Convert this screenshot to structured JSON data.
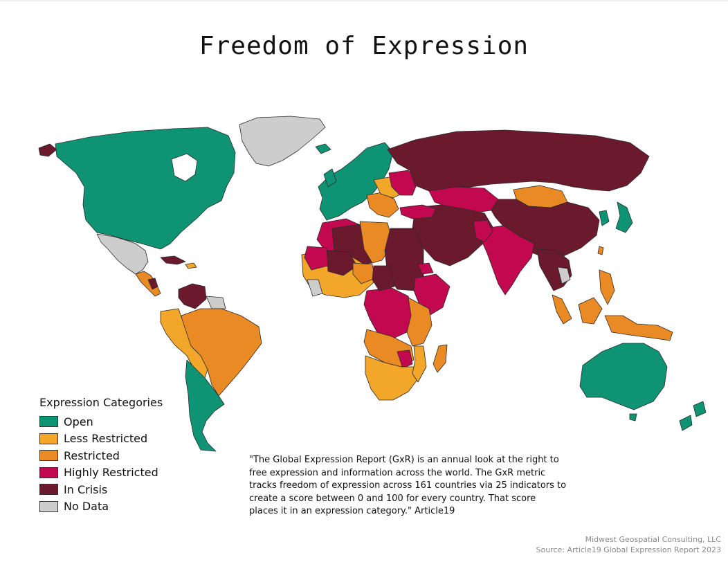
{
  "title": "Freedom of Expression",
  "legend": {
    "title": "Expression Categories",
    "items": [
      {
        "label": "Open",
        "color": "#0e9374"
      },
      {
        "label": "Less Restricted",
        "color": "#f3a72a"
      },
      {
        "label": "Restricted",
        "color": "#e98a25"
      },
      {
        "label": "Highly Restricted",
        "color": "#c2084f"
      },
      {
        "label": "In Crisis",
        "color": "#6b1a2d"
      },
      {
        "label": "No Data",
        "color": "#cdcdcd"
      }
    ]
  },
  "quote": "\"The Global Expression Report (GxR) is an annual look at the right to free expression and information across the world. The GxR metric tracks freedom of expression across 161 countries via 25 indicators to create a score between 0 and 100 for every country. That score places it in an expression category.\" Article19",
  "credit": {
    "line1": "Midwest Geospatial Consulting, LLC",
    "line2": "Source: Article19 Global Expression Report 2023"
  }
}
